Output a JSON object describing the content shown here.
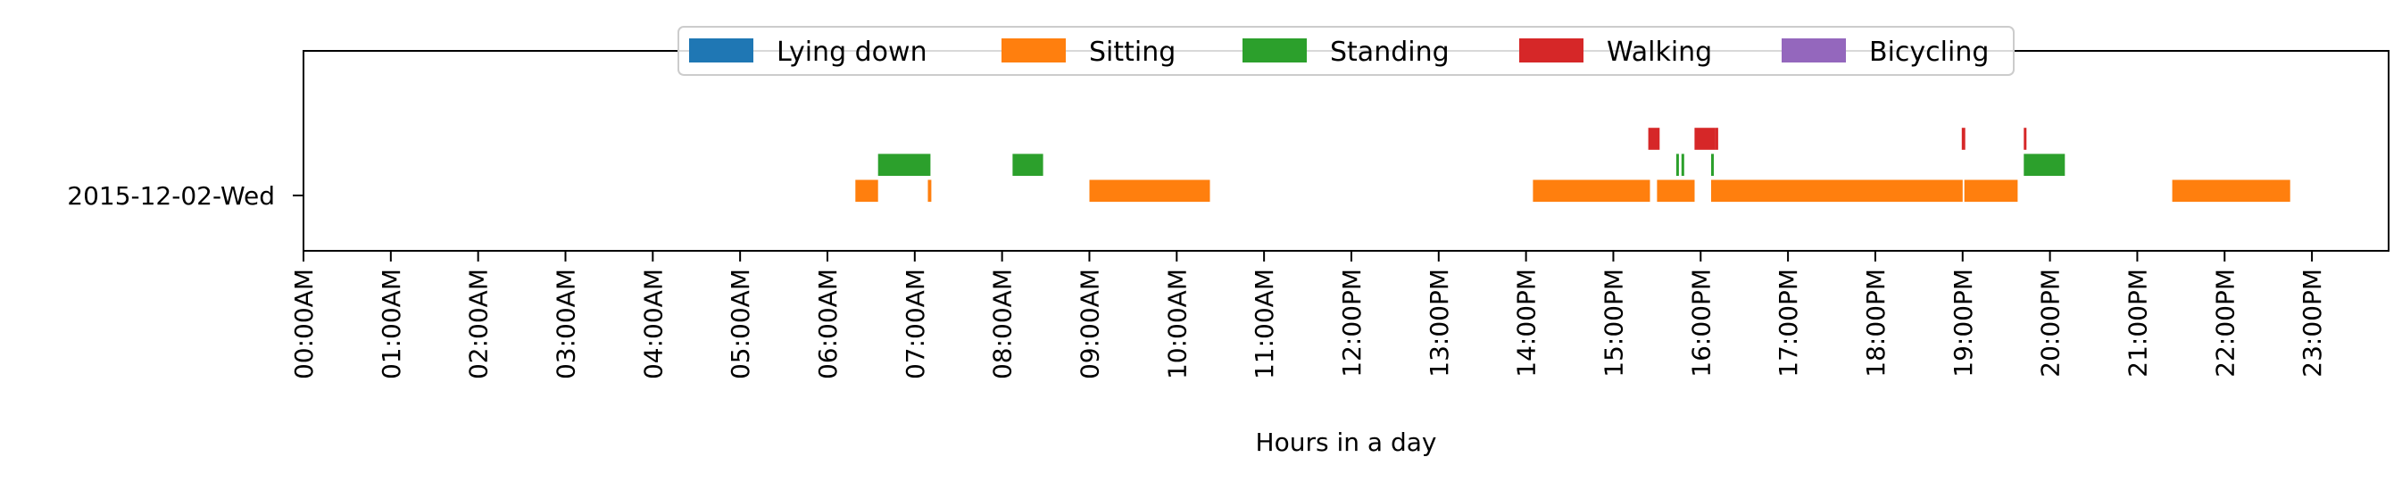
{
  "chart_data": {
    "type": "broken_barh",
    "title": "",
    "xlabel": "Hours in a day",
    "ylabel": "",
    "xlim": [
      0,
      24
    ],
    "ylim": [
      0,
      1
    ],
    "grid": false,
    "legend_position": "top-center",
    "day_label": "2015-12-02-Wed",
    "x_ticks": [
      0,
      1,
      2,
      3,
      4,
      5,
      6,
      7,
      8,
      9,
      10,
      11,
      12,
      13,
      14,
      15,
      16,
      17,
      18,
      19,
      20,
      21,
      22,
      23
    ],
    "x_tick_labels": [
      "00:00AM",
      "01:00AM",
      "02:00AM",
      "03:00AM",
      "04:00AM",
      "05:00AM",
      "06:00AM",
      "07:00AM",
      "08:00AM",
      "09:00AM",
      "10:00AM",
      "11:00AM",
      "12:00PM",
      "13:00PM",
      "14:00PM",
      "15:00PM",
      "16:00PM",
      "17:00PM",
      "18:00PM",
      "19:00PM",
      "20:00PM",
      "21:00PM",
      "22:00PM",
      "23:00PM"
    ],
    "series": [
      {
        "name": "Lying down",
        "color": "#1f77b4",
        "y_level": 0.5,
        "intervals": []
      },
      {
        "name": "Sitting",
        "color": "#ff7f0e",
        "y_level": 0.3,
        "intervals": [
          [
            6.32,
            6.58
          ],
          [
            7.15,
            7.19
          ],
          [
            9.0,
            10.38
          ],
          [
            14.08,
            15.42
          ],
          [
            15.5,
            15.93
          ],
          [
            16.12,
            19.0
          ],
          [
            19.02,
            19.63
          ],
          [
            21.4,
            22.75
          ]
        ]
      },
      {
        "name": "Standing",
        "color": "#2ca02c",
        "y_level": 0.43,
        "intervals": [
          [
            6.58,
            7.18
          ],
          [
            8.12,
            8.47
          ],
          [
            15.72,
            15.75
          ],
          [
            15.78,
            15.81
          ],
          [
            16.12,
            16.15
          ],
          [
            19.7,
            20.17
          ]
        ]
      },
      {
        "name": "Walking",
        "color": "#d62728",
        "y_level": 0.56,
        "intervals": [
          [
            15.4,
            15.53
          ],
          [
            15.93,
            16.17
          ],
          [
            16.17,
            16.2
          ],
          [
            18.99,
            19.03
          ],
          [
            19.7,
            19.73
          ]
        ]
      },
      {
        "name": "Bicycling",
        "color": "#9467bd",
        "y_level": 0.69,
        "intervals": []
      }
    ]
  }
}
